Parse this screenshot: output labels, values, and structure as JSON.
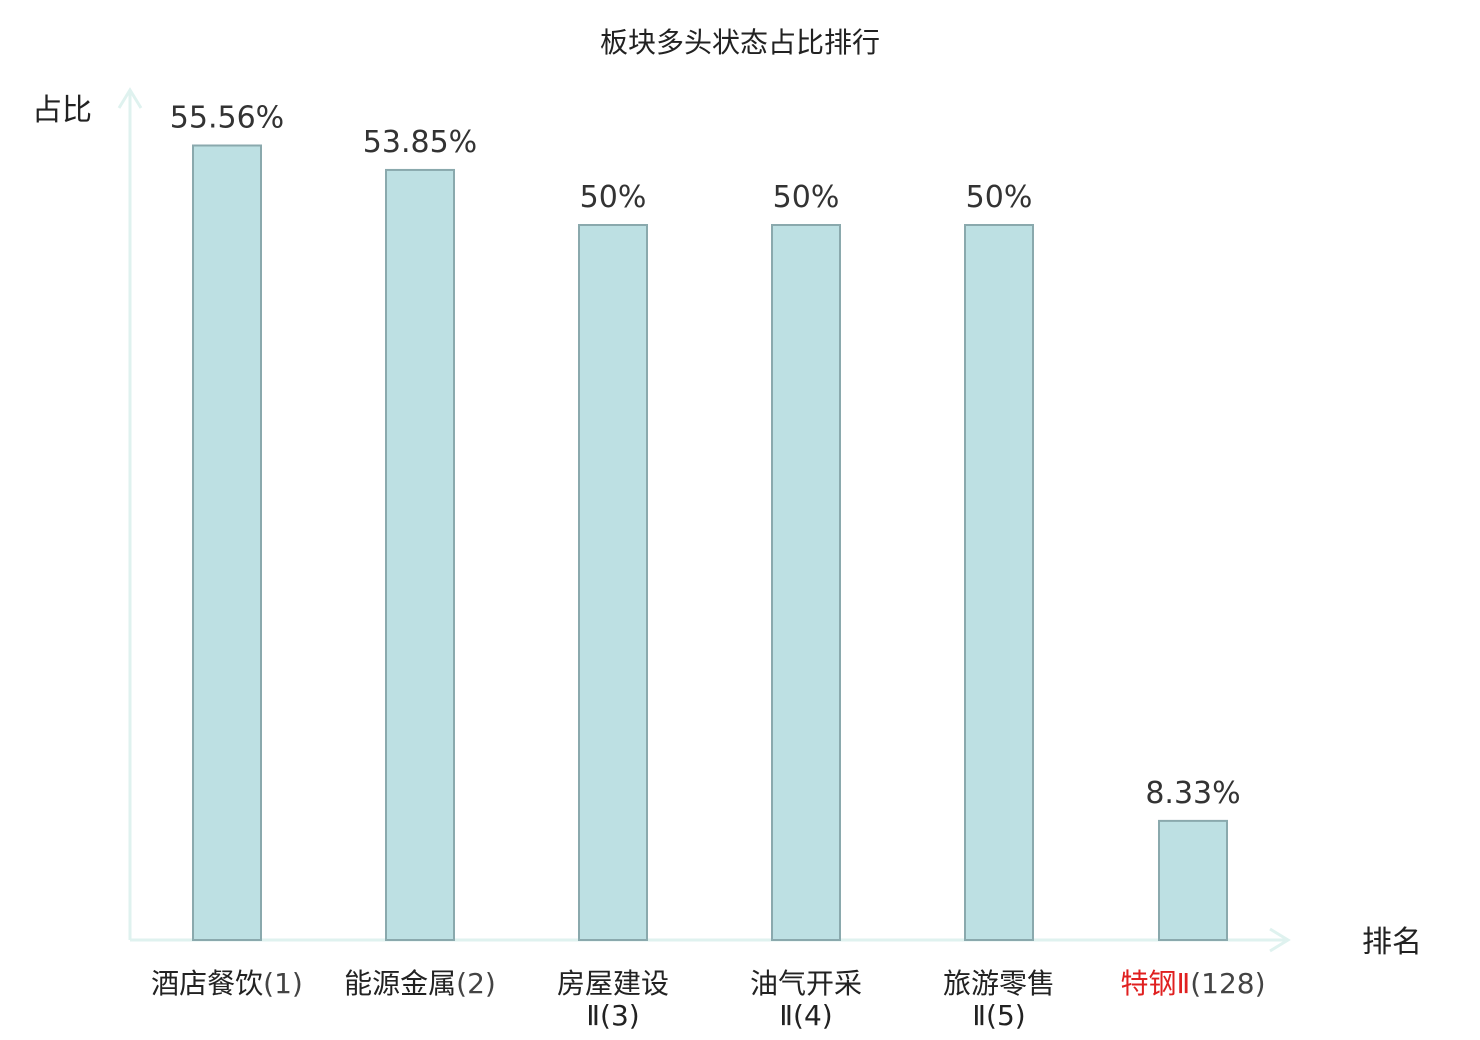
{
  "chart_data": {
    "type": "bar",
    "title": "板块多头状态占比排行",
    "ylabel": "占比",
    "xlabel": "排名",
    "ylim": [
      0,
      60
    ],
    "categories": [
      {
        "name": "酒店餐饮",
        "rank": "(1)",
        "line2": "",
        "highlight": false
      },
      {
        "name": "能源金属",
        "rank": "(2)",
        "line2": "",
        "highlight": false
      },
      {
        "name": "房屋建设",
        "rank": "",
        "line2": "Ⅱ(3)",
        "highlight": false
      },
      {
        "name": "油气开采",
        "rank": "",
        "line2": "Ⅱ(4)",
        "highlight": false
      },
      {
        "name": "旅游零售",
        "rank": "",
        "line2": "Ⅱ(5)",
        "highlight": false
      },
      {
        "name": "特钢Ⅱ",
        "rank": "(128)",
        "line2": "",
        "highlight": true
      }
    ],
    "values": [
      55.56,
      53.85,
      50,
      50,
      50,
      8.33
    ],
    "value_labels": [
      "55.56%",
      "53.85%",
      "50%",
      "50%",
      "50%",
      "8.33%"
    ],
    "colors": {
      "bar_fill": "#bde0e3",
      "bar_stroke": "#8aa9ad",
      "axis": "#dff2ef",
      "highlight": "#e02020"
    }
  }
}
